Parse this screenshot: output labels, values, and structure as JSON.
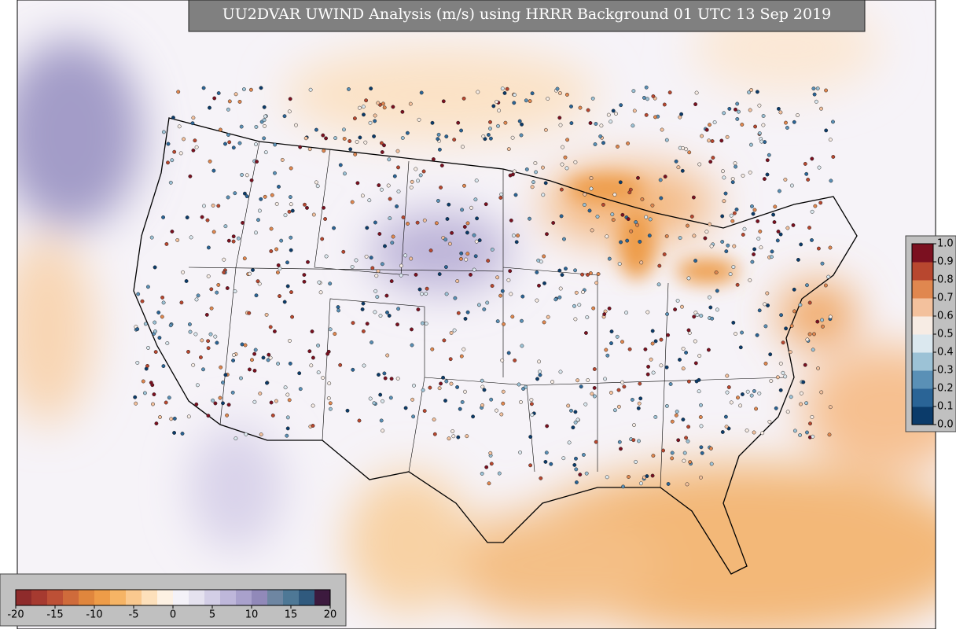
{
  "title": "UU2DVAR UWIND Analysis (m/s) using HRRR Background 01 UTC 13 Sep 2019",
  "wind_colorbar": {
    "lim": [
      -20,
      20
    ],
    "ticks": [
      -20,
      -15,
      -10,
      -5,
      0,
      5,
      10,
      15,
      20
    ],
    "colors": [
      "#8e2b2b",
      "#a63a30",
      "#bd5036",
      "#cf6b3b",
      "#e0863d",
      "#ee9c48",
      "#f6b465",
      "#fac98f",
      "#fde0bb",
      "#fdf1e3",
      "#f4f2f8",
      "#e5e2ef",
      "#d3cee6",
      "#beb7da",
      "#a9a1cc",
      "#9189b9",
      "#6e86a2",
      "#4e7896",
      "#305a7e",
      "#3c1a3e"
    ]
  },
  "obs_colorbar": {
    "lim": [
      0,
      1
    ],
    "ticks": [
      {
        "value": 0,
        "label": "0.0"
      },
      0.1,
      0.2,
      0.3,
      0.4,
      0.5,
      0.6,
      0.7,
      0.8,
      0.9,
      {
        "value": 1,
        "label": "1.0"
      }
    ],
    "colors": [
      "#0b3b6a",
      "#2a6496",
      "#5a90b6",
      "#9cc2d6",
      "#dbe8ef",
      "#f7ece4",
      "#f3c19d",
      "#e0874f",
      "#b8472f",
      "#7b1020"
    ]
  }
}
